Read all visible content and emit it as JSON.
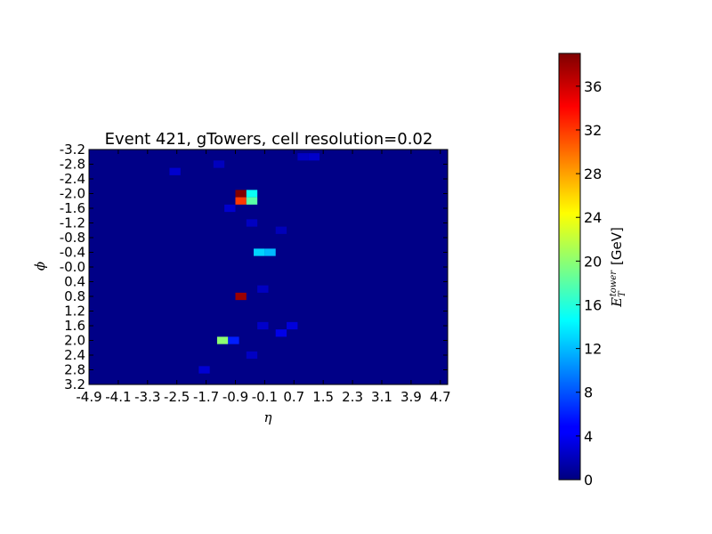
{
  "chart_data": {
    "type": "heatmap",
    "title": "Event 421, gTowers, cell resolution=0.02",
    "xlabel": "η",
    "ylabel": "ϕ",
    "x_ticks": [
      "-4.9",
      "-4.1",
      "-3.3",
      "-2.5",
      "-1.7",
      "-0.9",
      "-0.1",
      "0.7",
      "1.5",
      "2.3",
      "3.1",
      "3.9",
      "4.7"
    ],
    "y_ticks": [
      "-3.2",
      "-2.8",
      "-2.4",
      "-2.0",
      "-1.6",
      "-1.2",
      "-0.8",
      "-0.4",
      "-0.0",
      "0.4",
      "0.8",
      "1.2",
      "1.6",
      "2.0",
      "2.4",
      "2.8",
      "3.2"
    ],
    "xlim": [
      -4.9,
      4.9
    ],
    "ylim": [
      -3.2,
      3.2
    ],
    "y_inverted": true,
    "colorbar": {
      "label": "E_T^tower [GeV]",
      "label_main": "E",
      "label_sub": "T",
      "label_sup": "tower",
      "label_unit": "[GeV]",
      "ticks": [
        "0",
        "4",
        "8",
        "12",
        "16",
        "20",
        "24",
        "28",
        "32",
        "36"
      ],
      "range": [
        0,
        39
      ],
      "colormap": "jet"
    },
    "background_value": 0.3,
    "hot_cells": [
      {
        "eta": -0.75,
        "phi": -2.0,
        "value": 39
      },
      {
        "eta": -0.45,
        "phi": -2.0,
        "value": 15
      },
      {
        "eta": -0.75,
        "phi": -1.8,
        "value": 32
      },
      {
        "eta": -0.45,
        "phi": -1.8,
        "value": 18
      },
      {
        "eta": -0.25,
        "phi": -0.4,
        "value": 13
      },
      {
        "eta": 0.05,
        "phi": -0.4,
        "value": 12
      },
      {
        "eta": -0.75,
        "phi": 0.8,
        "value": 38
      },
      {
        "eta": -1.25,
        "phi": 2.0,
        "value": 20
      },
      {
        "eta": -0.95,
        "phi": 2.0,
        "value": 6
      },
      {
        "eta": -1.05,
        "phi": -1.6,
        "value": 3
      },
      {
        "eta": -0.45,
        "phi": -1.2,
        "value": 2.5
      },
      {
        "eta": 0.35,
        "phi": 1.8,
        "value": 4
      },
      {
        "eta": 0.65,
        "phi": 1.6,
        "value": 3.5
      },
      {
        "eta": -0.15,
        "phi": 1.6,
        "value": 2.8
      },
      {
        "eta": -2.55,
        "phi": -2.6,
        "value": 3
      },
      {
        "eta": -1.75,
        "phi": 2.8,
        "value": 3.2
      },
      {
        "eta": 0.95,
        "phi": -3.0,
        "value": 2.5
      },
      {
        "eta": 1.25,
        "phi": -3.0,
        "value": 2.8
      },
      {
        "eta": -0.15,
        "phi": 0.6,
        "value": 2.5
      },
      {
        "eta": 0.35,
        "phi": -1.0,
        "value": 2.2
      },
      {
        "eta": -0.45,
        "phi": 2.4,
        "value": 2.6
      },
      {
        "eta": -1.35,
        "phi": -2.8,
        "value": 2.4
      }
    ]
  }
}
